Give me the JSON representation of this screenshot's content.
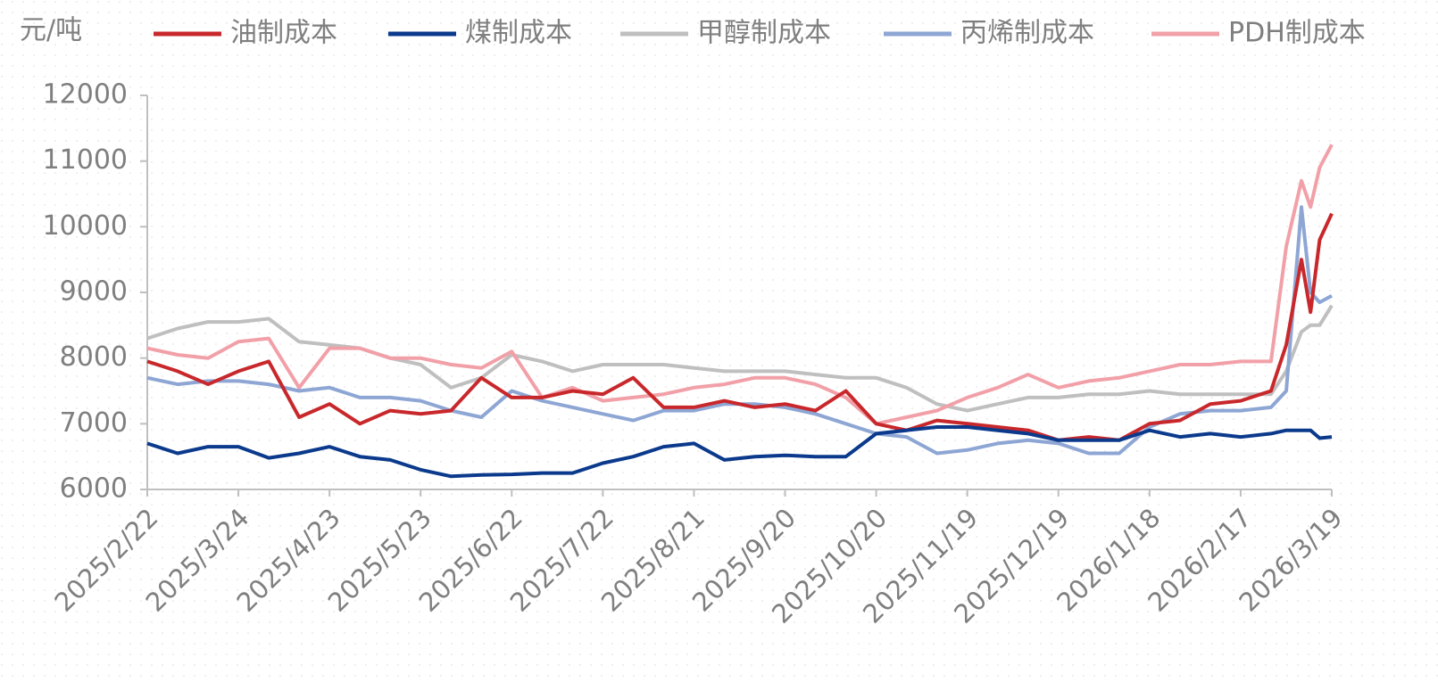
{
  "chart_data": {
    "type": "line",
    "ylabel": "元/吨",
    "x": [
      "2025/2/22",
      "2025/3/4",
      "2025/3/14",
      "2025/3/24",
      "2025/4/3",
      "2025/4/13",
      "2025/4/23",
      "2025/5/3",
      "2025/5/13",
      "2025/5/23",
      "2025/6/2",
      "2025/6/12",
      "2025/6/22",
      "2025/7/2",
      "2025/7/12",
      "2025/7/22",
      "2025/8/1",
      "2025/8/11",
      "2025/8/21",
      "2025/8/31",
      "2025/9/10",
      "2025/9/20",
      "2025/9/30",
      "2025/10/10",
      "2025/10/20",
      "2025/10/30",
      "2025/11/9",
      "2025/11/19",
      "2025/11/29",
      "2025/12/9",
      "2025/12/19",
      "2025/12/29",
      "2026/1/8",
      "2026/1/18",
      "2026/1/28",
      "2026/2/7",
      "2026/2/17",
      "2026/2/27",
      "2026/3/4",
      "2026/3/9",
      "2026/3/12",
      "2026/3/15",
      "2026/3/19"
    ],
    "series": [
      {
        "name": "油制成本",
        "color": "#c8282b",
        "values": [
          7950,
          7800,
          7600,
          7800,
          7950,
          7100,
          7300,
          7000,
          7200,
          7150,
          7200,
          7700,
          7400,
          7400,
          7500,
          7450,
          7700,
          7250,
          7250,
          7350,
          7250,
          7300,
          7200,
          7500,
          7000,
          6900,
          7050,
          7000,
          6950,
          6900,
          6750,
          6800,
          6750,
          7000,
          7050,
          7300,
          7350,
          7500,
          8200,
          9500,
          8700,
          9800,
          10200
        ]
      },
      {
        "name": "煤制成本",
        "color": "#0b3a8c",
        "values": [
          6700,
          6550,
          6650,
          6650,
          6480,
          6550,
          6650,
          6500,
          6450,
          6300,
          6200,
          6220,
          6230,
          6250,
          6250,
          6400,
          6500,
          6650,
          6700,
          6450,
          6500,
          6520,
          6500,
          6500,
          6850,
          6900,
          6950,
          6950,
          6900,
          6850,
          6750,
          6750,
          6750,
          6900,
          6800,
          6850,
          6800,
          6850,
          6900,
          6900,
          6900,
          6780,
          6800
        ]
      },
      {
        "name": "甲醇制成本",
        "color": "#bfbfbf",
        "values": [
          8300,
          8450,
          8550,
          8550,
          8600,
          8250,
          8200,
          8150,
          8000,
          7900,
          7550,
          7700,
          8050,
          7950,
          7800,
          7900,
          7900,
          7900,
          7850,
          7800,
          7800,
          7800,
          7750,
          7700,
          7700,
          7550,
          7300,
          7200,
          7300,
          7400,
          7400,
          7450,
          7450,
          7500,
          7450,
          7450,
          7450,
          7450,
          7800,
          8400,
          8500,
          8500,
          8800
        ]
      },
      {
        "name": "丙烯制成本",
        "color": "#8ea6d4",
        "values": [
          7700,
          7600,
          7650,
          7650,
          7600,
          7500,
          7550,
          7400,
          7400,
          7350,
          7200,
          7100,
          7500,
          7350,
          7250,
          7150,
          7050,
          7200,
          7200,
          7300,
          7300,
          7250,
          7150,
          7000,
          6850,
          6800,
          6550,
          6600,
          6700,
          6750,
          6700,
          6550,
          6550,
          6950,
          7150,
          7200,
          7200,
          7250,
          7500,
          10300,
          9000,
          8850,
          8950
        ]
      },
      {
        "name": "PDH制成本",
        "color": "#f2a0a8",
        "values": [
          8150,
          8050,
          8000,
          8250,
          8300,
          7550,
          8150,
          8150,
          8000,
          8000,
          7900,
          7850,
          8100,
          7400,
          7550,
          7350,
          7400,
          7450,
          7550,
          7600,
          7700,
          7700,
          7600,
          7400,
          7000,
          7100,
          7200,
          7400,
          7550,
          7750,
          7550,
          7650,
          7700,
          7800,
          7900,
          7900,
          7950,
          7950,
          9700,
          10700,
          10300,
          10900,
          11250
        ]
      }
    ],
    "xlim": [
      "2025/2/22",
      "2026/3/19"
    ],
    "xticks": [
      "2025/2/22",
      "2025/3/24",
      "2025/4/23",
      "2025/5/23",
      "2025/6/22",
      "2025/7/22",
      "2025/8/21",
      "2025/9/20",
      "2025/10/20",
      "2025/11/19",
      "2025/12/19",
      "2026/1/18",
      "2026/2/17",
      "2026/3/19"
    ],
    "ylim": [
      6000,
      12000
    ],
    "yticks": [
      6000,
      7000,
      8000,
      9000,
      10000,
      11000,
      12000
    ]
  }
}
